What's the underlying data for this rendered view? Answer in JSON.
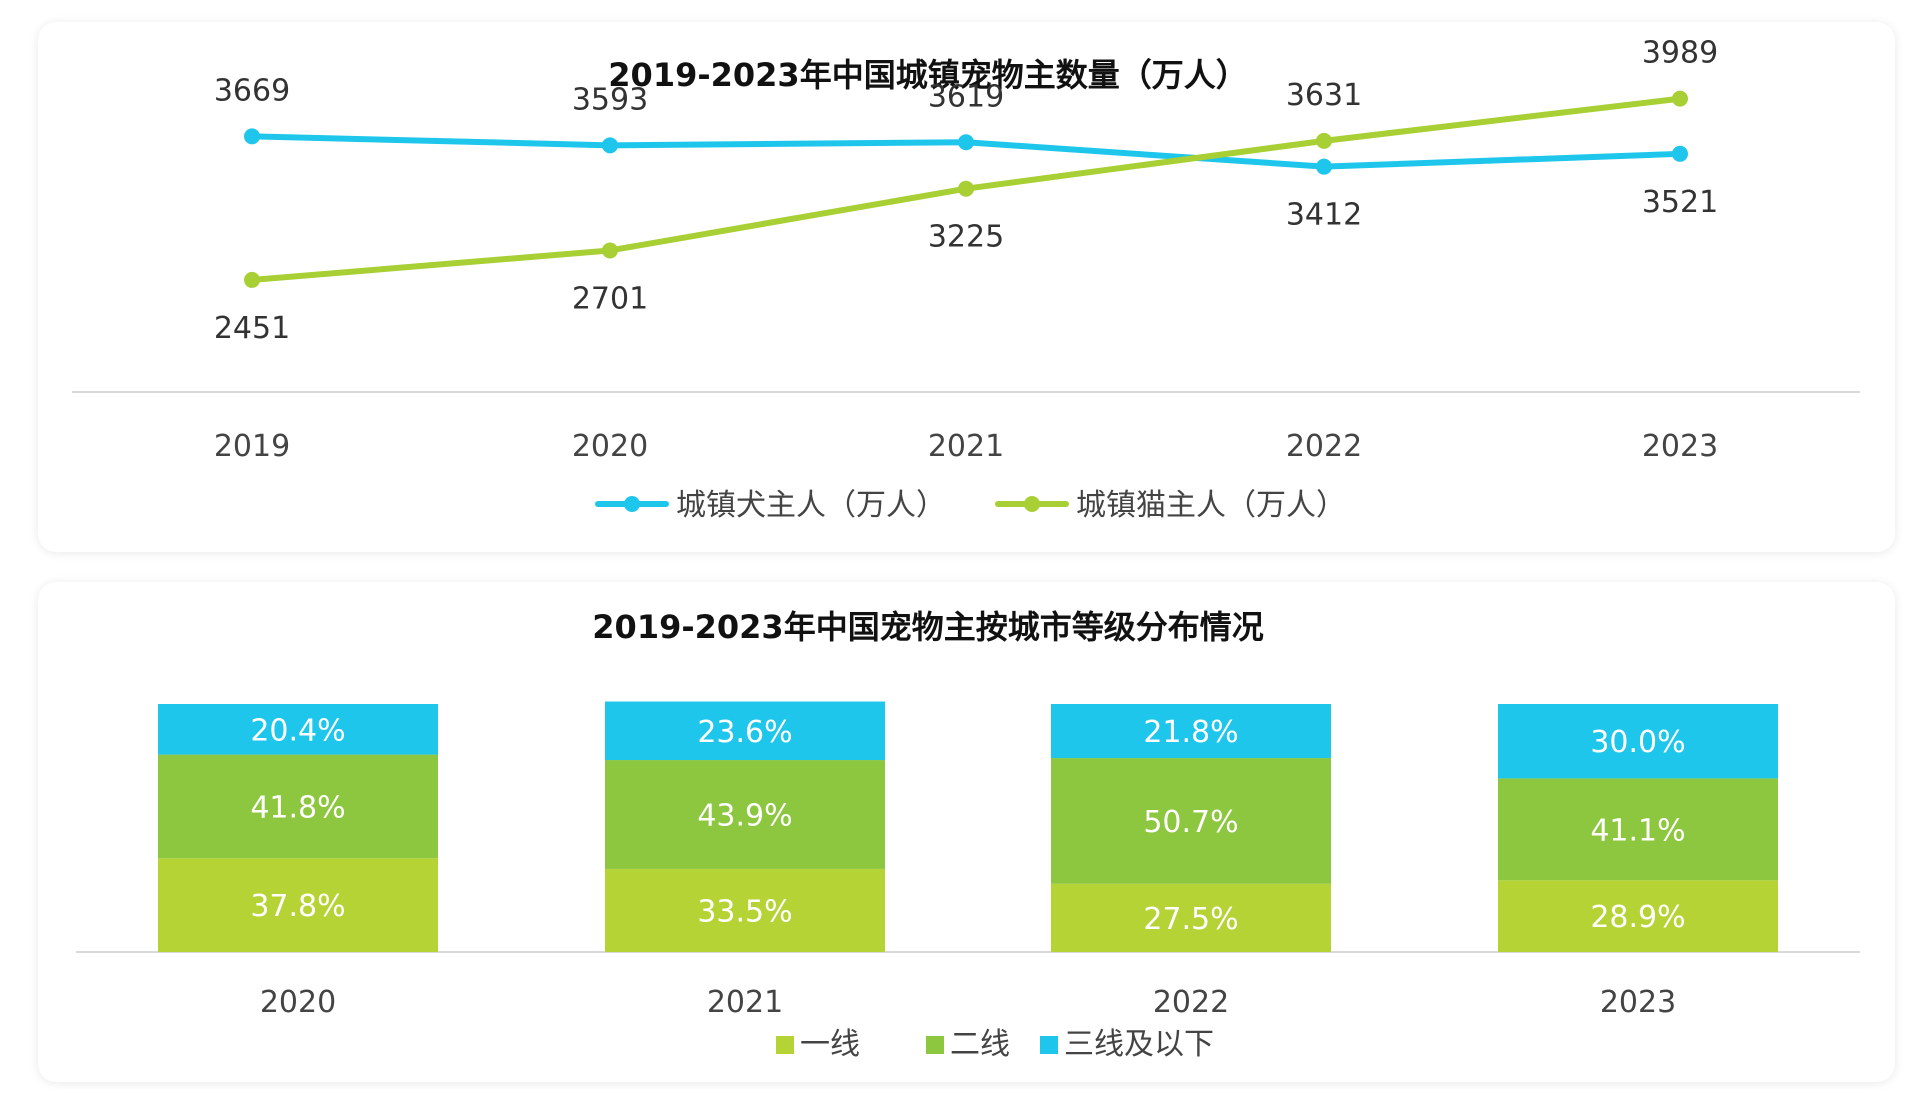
{
  "chart_data": [
    {
      "type": "line",
      "title": "2019-2023年中国城镇宠物主数量（万人）",
      "x": [
        "2019",
        "2020",
        "2021",
        "2022",
        "2023"
      ],
      "series": [
        {
          "name": "城镇犬主人（万人）",
          "values": [
            3669,
            3593,
            3619,
            3412,
            3521
          ],
          "color": "#1fc6ec"
        },
        {
          "name": "城镇猫主人（万人）",
          "values": [
            2451,
            2701,
            3225,
            3631,
            3989
          ],
          "color": "#a8cf34"
        }
      ],
      "ylim": [
        1500,
        4300
      ],
      "grid": false,
      "legend": "bottom"
    },
    {
      "type": "bar",
      "stacked": true,
      "title": "2019-2023年中国宠物主按城市等级分布情况",
      "categories": [
        "2020",
        "2021",
        "2022",
        "2023"
      ],
      "series": [
        {
          "name": "一线",
          "values": [
            37.8,
            33.5,
            27.5,
            28.9
          ],
          "labels": [
            "37.8%",
            "33.5%",
            "27.5%",
            "28.9%"
          ],
          "color": "#b5d335"
        },
        {
          "name": "二线",
          "values": [
            41.8,
            43.9,
            50.7,
            41.1
          ],
          "labels": [
            "41.8%",
            "43.9%",
            "50.7%",
            "41.1%"
          ],
          "color": "#8dc63f"
        },
        {
          "name": "三线及以下",
          "values": [
            20.4,
            23.6,
            21.8,
            30.0
          ],
          "labels": [
            "20.4%",
            "23.6%",
            "21.8%",
            "30.0%"
          ],
          "color": "#1fc6ec"
        }
      ],
      "ylim": [
        0,
        100
      ],
      "grid": false,
      "legend": "bottom"
    }
  ]
}
